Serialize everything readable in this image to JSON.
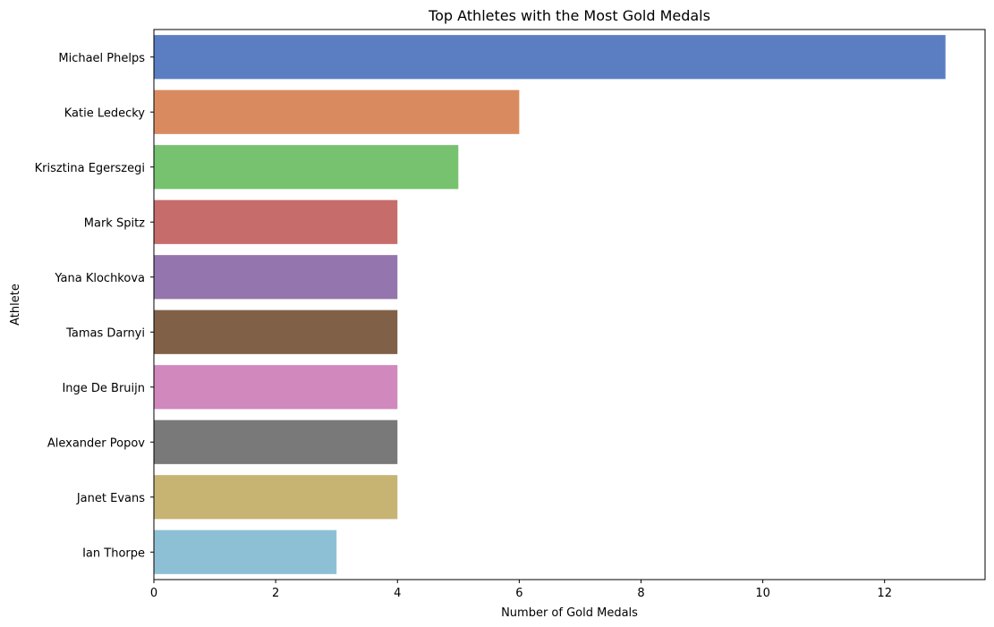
{
  "chart_data": {
    "type": "bar",
    "orientation": "horizontal",
    "title": "Top Athletes with the Most Gold Medals",
    "xlabel": "Number of Gold Medals",
    "ylabel": "Athlete",
    "xlim": [
      0,
      13.65
    ],
    "xticks": [
      0,
      2,
      4,
      6,
      8,
      10,
      12
    ],
    "grid": false,
    "categories": [
      "Michael Phelps",
      "Katie Ledecky",
      "Krisztina Egerszegi",
      "Mark Spitz",
      "Yana Klochkova",
      "Tamas Darnyi",
      "Inge De Bruijn",
      "Alexander Popov",
      "Janet Evans",
      "Ian Thorpe"
    ],
    "values": [
      13,
      6,
      5,
      4,
      4,
      4,
      4,
      4,
      4,
      3
    ],
    "colors": [
      "#5a7ec1",
      "#d98b5f",
      "#77c26f",
      "#c66d6c",
      "#9575ad",
      "#806147",
      "#d188bd",
      "#797979",
      "#c7b473",
      "#8ec0d5"
    ]
  }
}
